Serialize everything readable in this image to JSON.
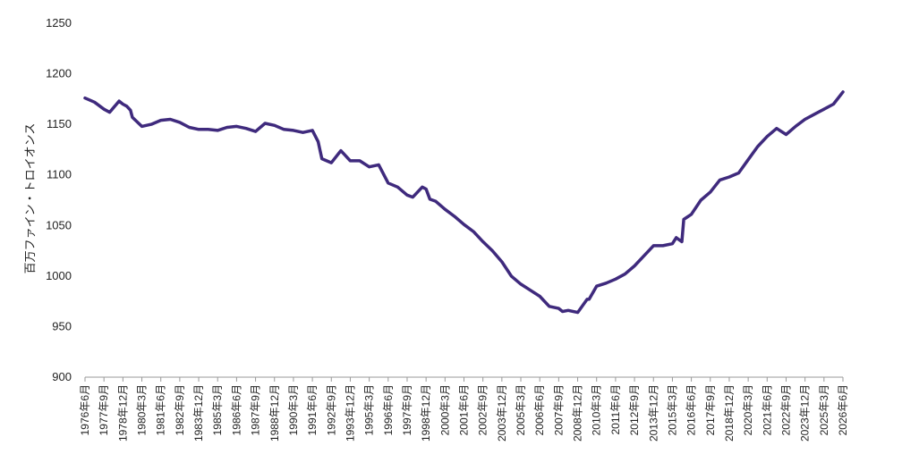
{
  "chart_data": {
    "type": "line",
    "title": "",
    "xlabel": "",
    "ylabel": "百万ファイン・トロイオンス",
    "ylim": [
      900,
      1250
    ],
    "yticks": [
      900,
      950,
      1000,
      1050,
      1100,
      1150,
      1200,
      1250
    ],
    "grid": false,
    "legend": "none",
    "line_color": "#3f2a7d",
    "x_tick_labels": [
      "1976年6月",
      "1977年9月",
      "1978年12月",
      "1980年3月",
      "1981年6月",
      "1982年9月",
      "1983年12月",
      "1985年3月",
      "1986年6月",
      "1987年9月",
      "1988年12月",
      "1990年3月",
      "1991年6月",
      "1992年9月",
      "1993年12月",
      "1995年3月",
      "1996年6月",
      "1997年9月",
      "1998年12月",
      "2000年3月",
      "2001年6月",
      "2002年9月",
      "2003年12月",
      "2005年3月",
      "2006年6月",
      "2007年9月",
      "2008年12月",
      "2010年3月",
      "2011年6月",
      "2012年9月",
      "2013年12月",
      "2015年3月",
      "2016年6月",
      "2017年9月",
      "2018年12月",
      "2020年3月",
      "2021年6月",
      "2022年9月",
      "2023年12月",
      "2025年3月",
      "2026年6月"
    ],
    "series": [
      {
        "x": [
          0,
          0.5,
          1,
          1.3,
          1.8,
          2,
          2.2,
          2.4,
          2.5,
          3,
          3.5,
          4,
          4.5,
          5,
          5.5,
          6,
          6.5,
          7,
          7.5,
          8,
          8.5,
          9,
          9.5,
          10,
          10.5,
          11,
          11.5,
          12,
          12.3,
          12.5,
          13,
          13.5,
          13.7,
          14,
          14.5,
          15,
          15.5,
          16,
          16.5,
          17,
          17.3,
          17.8,
          18,
          18.2,
          18.5,
          19,
          19.5,
          20,
          20.5,
          21,
          21.5,
          22,
          22.5,
          23,
          23.5,
          24,
          24.5,
          25,
          25.2,
          25.5,
          26,
          26.5,
          26.6,
          27,
          27.5,
          28,
          28.5,
          29,
          29.5,
          30,
          30.5,
          31,
          31.2,
          31.5,
          31.6,
          32,
          32.5,
          33,
          33.5,
          34,
          34.5,
          35,
          35.5,
          36,
          36.5,
          37,
          37.5,
          38,
          38.5,
          39,
          39.5,
          40
        ],
        "values": [
          1176,
          1172,
          1165,
          1162,
          1173,
          1170,
          1168,
          1164,
          1157,
          1148,
          1150,
          1154,
          1155,
          1152,
          1147,
          1145,
          1145,
          1144,
          1147,
          1148,
          1146,
          1143,
          1151,
          1149,
          1145,
          1144,
          1142,
          1144,
          1133,
          1116,
          1112,
          1124,
          1120,
          1114,
          1114,
          1108,
          1110,
          1092,
          1088,
          1080,
          1078,
          1088,
          1086,
          1076,
          1074,
          1066,
          1059,
          1051,
          1044,
          1034,
          1025,
          1014,
          1000,
          992,
          986,
          980,
          970,
          968,
          965,
          966,
          964,
          977,
          977,
          990,
          993,
          997,
          1002,
          1010,
          1020,
          1030,
          1030,
          1032,
          1038,
          1034,
          1056,
          1061,
          1075,
          1083,
          1095,
          1098,
          1102,
          1115,
          1128,
          1138,
          1146,
          1140,
          1148,
          1155,
          1160,
          1165,
          1170,
          1182
        ]
      }
    ]
  }
}
